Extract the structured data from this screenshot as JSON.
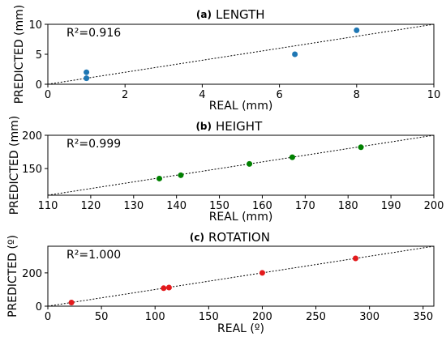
{
  "chart_data": [
    {
      "type": "scatter",
      "panel_letter": "(a)",
      "title": "LENGTH",
      "xlabel": "REAL (mm)",
      "ylabel": "PREDICTED (mm)",
      "xlim": [
        0,
        10
      ],
      "ylim": [
        0,
        10
      ],
      "xticks": [
        0,
        2,
        4,
        6,
        8,
        10
      ],
      "yticks": [
        0,
        5,
        10
      ],
      "annotation": "R²=0.916",
      "grid": false,
      "color": "#1f77b4",
      "identity_line": true,
      "points": [
        {
          "x": 1.0,
          "y": 2.0
        },
        {
          "x": 1.0,
          "y": 1.0
        },
        {
          "x": 6.4,
          "y": 5.0
        },
        {
          "x": 8.0,
          "y": 9.0
        }
      ]
    },
    {
      "type": "scatter",
      "panel_letter": "(b)",
      "title": "HEIGHT",
      "xlabel": "REAL (mm)",
      "ylabel": "PREDICTED (mm)",
      "xlim": [
        110,
        200
      ],
      "ylim": [
        110,
        200
      ],
      "xticks": [
        110,
        120,
        130,
        140,
        150,
        160,
        170,
        180,
        190,
        200
      ],
      "yticks": [
        150,
        200
      ],
      "annotation": "R²=0.999",
      "grid": false,
      "color": "#008000",
      "identity_line": true,
      "points": [
        {
          "x": 136,
          "y": 135
        },
        {
          "x": 141,
          "y": 140
        },
        {
          "x": 157,
          "y": 157
        },
        {
          "x": 167,
          "y": 167
        },
        {
          "x": 183,
          "y": 182
        }
      ]
    },
    {
      "type": "scatter",
      "panel_letter": "(c)",
      "title": "ROTATION",
      "xlabel": "REAL (º)",
      "ylabel": "PREDICTED (º)",
      "xlim": [
        0,
        360
      ],
      "ylim": [
        0,
        360
      ],
      "xticks": [
        0,
        50,
        100,
        150,
        200,
        250,
        300,
        350
      ],
      "yticks": [
        0,
        200
      ],
      "annotation": "R²=1.000",
      "grid": false,
      "color": "#e31a1c",
      "identity_line": true,
      "points": [
        {
          "x": 22,
          "y": 22
        },
        {
          "x": 108,
          "y": 108
        },
        {
          "x": 113,
          "y": 112
        },
        {
          "x": 200,
          "y": 200
        },
        {
          "x": 287,
          "y": 287
        }
      ]
    }
  ]
}
